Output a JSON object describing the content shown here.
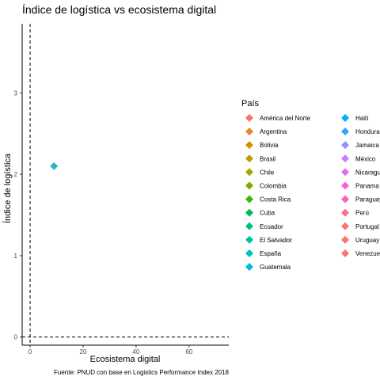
{
  "chart_data": {
    "type": "scatter",
    "title": "Índice de logística vs ecosistema digital",
    "xlabel": "Ecosistema digital",
    "ylabel": "Índice  de logística",
    "caption": "Fuente: PNUD con base en Logistics Performance Index 2018",
    "xlim": [
      -3,
      75
    ],
    "ylim": [
      -0.1,
      3.85
    ],
    "x_ticks": [
      0,
      20,
      40,
      60
    ],
    "y_ticks": [
      0,
      1,
      2,
      3
    ],
    "reference_lines": {
      "vertical_x": 0,
      "horizontal_y": 0,
      "style": "dashed"
    },
    "grid": false,
    "legend": {
      "title": "País",
      "placement": "right",
      "columns": 2,
      "entries": [
        {
          "name": "América del Norte",
          "color": "#F8766D"
        },
        {
          "name": "Argentina",
          "color": "#EA8331"
        },
        {
          "name": "Bolivia",
          "color": "#D89000"
        },
        {
          "name": "Brasil",
          "color": "#C09B00"
        },
        {
          "name": "Chile",
          "color": "#A3A500"
        },
        {
          "name": "Colombia",
          "color": "#7CAE00"
        },
        {
          "name": "Costa Rica",
          "color": "#39B600"
        },
        {
          "name": "Cuba",
          "color": "#00BB4E"
        },
        {
          "name": "Ecuador",
          "color": "#00BF7D"
        },
        {
          "name": "El Salvador",
          "color": "#00C1A3"
        },
        {
          "name": "España",
          "color": "#00BFC4"
        },
        {
          "name": "Guatemala",
          "color": "#00BAE0"
        },
        {
          "name": "Haití",
          "color": "#00B0F6"
        },
        {
          "name": "Honduras",
          "color": "#35A2FF"
        },
        {
          "name": "Jamaica",
          "color": "#9590FF"
        },
        {
          "name": "México",
          "color": "#C77CFF"
        },
        {
          "name": "Nicaragua",
          "color": "#E76BF3"
        },
        {
          "name": "Panama",
          "color": "#FA62DB"
        },
        {
          "name": "Paraguay",
          "color": "#FF62BC"
        },
        {
          "name": "Perú",
          "color": "#FF6C91"
        },
        {
          "name": "Portugal",
          "color": "#F8766D"
        },
        {
          "name": "Uruguay",
          "color": "#F8766D"
        },
        {
          "name": "Venezuela",
          "color": "#F8766D"
        }
      ]
    },
    "points": [
      {
        "country": "Guatemala",
        "x": 9,
        "y": 2.1,
        "color": "#1FB8C9"
      }
    ]
  }
}
